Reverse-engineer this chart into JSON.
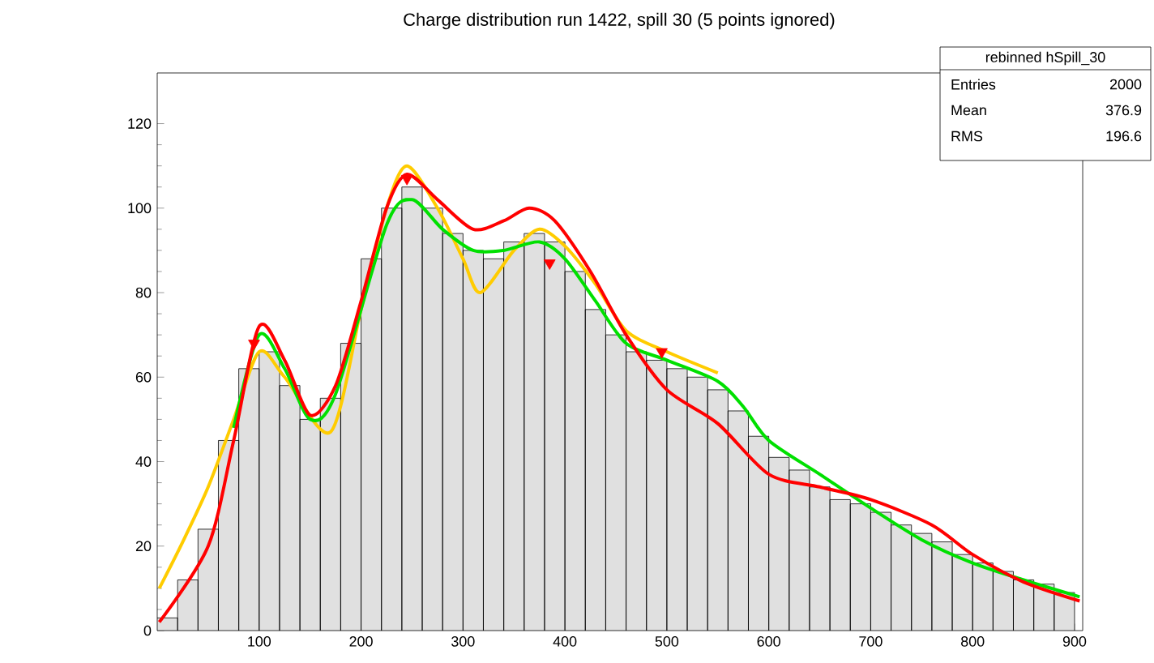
{
  "chart_data": {
    "type": "histogram",
    "title": "Charge distribution run 1422, spill 30 (5 points ignored)",
    "bins": [
      0,
      20,
      40,
      60,
      80,
      100,
      120,
      140,
      160,
      180,
      200,
      220,
      240,
      260,
      280,
      300,
      320,
      340,
      360,
      380,
      400,
      420,
      440,
      460,
      480,
      500,
      520,
      540,
      560,
      580,
      600,
      620,
      640,
      660,
      680,
      700,
      720,
      740,
      760,
      780,
      800,
      820,
      840,
      860,
      880,
      900
    ],
    "values": [
      3,
      12,
      24,
      45,
      62,
      66,
      58,
      50,
      55,
      68,
      88,
      100,
      105,
      100,
      94,
      90,
      88,
      92,
      94,
      92,
      85,
      76,
      70,
      66,
      64,
      62,
      60,
      57,
      52,
      46,
      41,
      38,
      34,
      31,
      30,
      28,
      25,
      23,
      21,
      18,
      16,
      14,
      12,
      11,
      9
    ],
    "color": "#e0e0e0",
    "series": [
      {
        "type": "line",
        "color": "#ffcc00",
        "x": [
          2,
          25,
          50,
          75,
          100,
          125,
          170,
          200,
          225,
          245,
          275,
          300,
          317,
          350,
          375,
          400,
          430,
          460,
          500,
          550
        ],
        "values": [
          10,
          21,
          34,
          50,
          66,
          60,
          47,
          76,
          100,
          110,
          100,
          88,
          80,
          90,
          95,
          91,
          82,
          71,
          66,
          61
        ]
      },
      {
        "type": "line",
        "color": "#00e000",
        "x": [
          75,
          100,
          125,
          150,
          175,
          225,
          250,
          280,
          310,
          340,
          375,
          400,
          430,
          460,
          500,
          550,
          575,
          600,
          650,
          700,
          750,
          800,
          850,
          905
        ],
        "values": [
          48,
          70,
          62,
          50,
          56,
          96,
          102,
          95,
          90,
          90,
          92,
          88,
          78,
          68,
          64,
          59,
          53,
          45,
          37,
          29,
          21.5,
          16,
          12,
          8
        ]
      },
      {
        "type": "line",
        "color": "#ff0000",
        "x": [
          2,
          50,
          75,
          100,
          125,
          150,
          175,
          200,
          225,
          245,
          275,
          310,
          340,
          365,
          390,
          425,
          460,
          500,
          550,
          600,
          650,
          700,
          760,
          800,
          850,
          905
        ],
        "values": [
          2,
          20,
          45,
          72,
          64,
          51,
          58,
          78,
          100,
          108,
          102,
          95,
          97,
          100,
          97,
          85,
          70,
          57,
          49,
          37,
          34,
          31,
          25,
          18,
          11.5,
          7
        ]
      },
      {
        "type": "scatter",
        "marker": "triangle",
        "color": "#ff0000",
        "x": [
          95,
          245,
          385,
          495
        ],
        "values": [
          68,
          107,
          87,
          66
        ]
      }
    ],
    "xlim": [
      0,
      908
    ],
    "ylim": [
      0,
      132
    ],
    "xticks": [
      100,
      200,
      300,
      400,
      500,
      600,
      700,
      800,
      900
    ],
    "yticks": [
      0,
      20,
      40,
      60,
      80,
      100,
      120
    ],
    "grid": false,
    "annotations": [
      "rebinned hSpill_30",
      "Entries",
      "2000",
      "Mean",
      "376.9",
      "RMS",
      "196.6"
    ]
  }
}
